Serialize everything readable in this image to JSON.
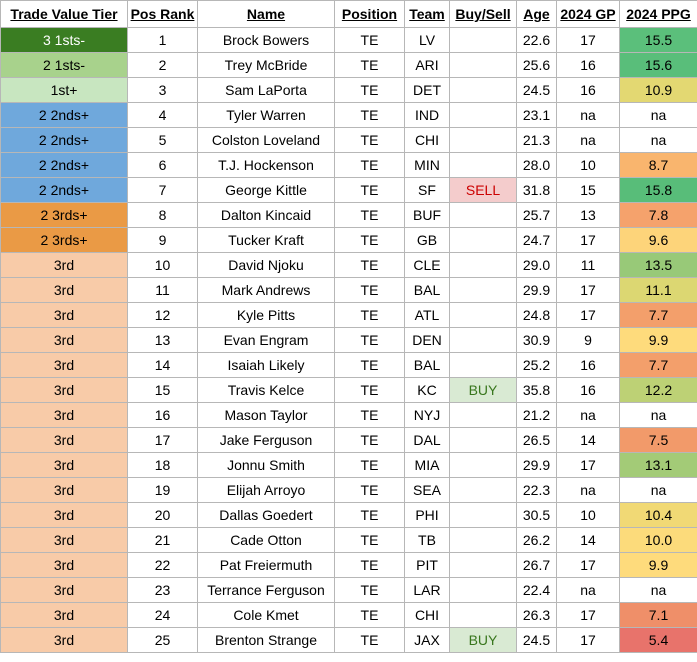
{
  "columns": [
    "Trade Value Tier",
    "Pos Rank",
    "Name",
    "Position",
    "Team",
    "Buy/Sell",
    "Age",
    "2024 GP",
    "2024 PPG"
  ],
  "colors": {
    "tier": {
      "3 1sts-": "#3a7d22",
      "2 1sts-": "#a8d28c",
      "1st+": "#c8e6c0",
      "2 2nds+": "#6fa8dc",
      "2 3rds+": "#ea9a45",
      "3rd": "#f8cba8"
    },
    "tier_text": {
      "3 1sts-": "#ffffff",
      "2 1sts-": "#000000",
      "1st+": "#000000",
      "2 2nds+": "#000000",
      "2 3rds+": "#000000",
      "3rd": "#000000"
    },
    "buy": "#d9ead3",
    "sell": "#f4cccc",
    "buy_text": "#38761d",
    "sell_text": "#cc0000"
  },
  "rows": [
    {
      "tier": "3 1sts-",
      "rank": "1",
      "name": "Brock Bowers",
      "pos": "TE",
      "team": "LV",
      "buysell": "",
      "age": "22.6",
      "gp": "17",
      "ppg": "15.5",
      "ppg_color": "#5bbf7b"
    },
    {
      "tier": "2 1sts-",
      "rank": "2",
      "name": "Trey McBride",
      "pos": "TE",
      "team": "ARI",
      "buysell": "",
      "age": "25.6",
      "gp": "16",
      "ppg": "15.6",
      "ppg_color": "#59be7a"
    },
    {
      "tier": "1st+",
      "rank": "3",
      "name": "Sam LaPorta",
      "pos": "TE",
      "team": "DET",
      "buysell": "",
      "age": "24.5",
      "gp": "16",
      "ppg": "10.9",
      "ppg_color": "#e3d872"
    },
    {
      "tier": "2 2nds+",
      "rank": "4",
      "name": "Tyler Warren",
      "pos": "TE",
      "team": "IND",
      "buysell": "",
      "age": "23.1",
      "gp": "na",
      "ppg": "na",
      "ppg_color": "#ffffff"
    },
    {
      "tier": "2 2nds+",
      "rank": "5",
      "name": "Colston Loveland",
      "pos": "TE",
      "team": "CHI",
      "buysell": "",
      "age": "21.3",
      "gp": "na",
      "ppg": "na",
      "ppg_color": "#ffffff"
    },
    {
      "tier": "2 2nds+",
      "rank": "6",
      "name": "T.J. Hockenson",
      "pos": "TE",
      "team": "MIN",
      "buysell": "",
      "age": "28.0",
      "gp": "10",
      "ppg": "8.7",
      "ppg_color": "#f9b56e"
    },
    {
      "tier": "2 2nds+",
      "rank": "7",
      "name": "George Kittle",
      "pos": "TE",
      "team": "SF",
      "buysell": "SELL",
      "age": "31.8",
      "gp": "15",
      "ppg": "15.8",
      "ppg_color": "#58bd79"
    },
    {
      "tier": "2 3rds+",
      "rank": "8",
      "name": "Dalton Kincaid",
      "pos": "TE",
      "team": "BUF",
      "buysell": "",
      "age": "25.7",
      "gp": "13",
      "ppg": "7.8",
      "ppg_color": "#f5a26c"
    },
    {
      "tier": "2 3rds+",
      "rank": "9",
      "name": "Tucker Kraft",
      "pos": "TE",
      "team": "GB",
      "buysell": "",
      "age": "24.7",
      "gp": "17",
      "ppg": "9.6",
      "ppg_color": "#fdd47a"
    },
    {
      "tier": "3rd",
      "rank": "10",
      "name": "David Njoku",
      "pos": "TE",
      "team": "CLE",
      "buysell": "",
      "age": "29.0",
      "gp": "11",
      "ppg": "13.5",
      "ppg_color": "#98c978"
    },
    {
      "tier": "3rd",
      "rank": "11",
      "name": "Mark Andrews",
      "pos": "TE",
      "team": "BAL",
      "buysell": "",
      "age": "29.9",
      "gp": "17",
      "ppg": "11.1",
      "ppg_color": "#dcd772"
    },
    {
      "tier": "3rd",
      "rank": "12",
      "name": "Kyle Pitts",
      "pos": "TE",
      "team": "ATL",
      "buysell": "",
      "age": "24.8",
      "gp": "17",
      "ppg": "7.7",
      "ppg_color": "#f39f6b"
    },
    {
      "tier": "3rd",
      "rank": "13",
      "name": "Evan Engram",
      "pos": "TE",
      "team": "DEN",
      "buysell": "",
      "age": "30.9",
      "gp": "9",
      "ppg": "9.9",
      "ppg_color": "#fedb7c"
    },
    {
      "tier": "3rd",
      "rank": "14",
      "name": "Isaiah Likely",
      "pos": "TE",
      "team": "BAL",
      "buysell": "",
      "age": "25.2",
      "gp": "16",
      "ppg": "7.7",
      "ppg_color": "#f39f6b"
    },
    {
      "tier": "3rd",
      "rank": "15",
      "name": "Travis Kelce",
      "pos": "TE",
      "team": "KC",
      "buysell": "BUY",
      "age": "35.8",
      "gp": "16",
      "ppg": "12.2",
      "ppg_color": "#bdd175"
    },
    {
      "tier": "3rd",
      "rank": "16",
      "name": "Mason Taylor",
      "pos": "TE",
      "team": "NYJ",
      "buysell": "",
      "age": "21.2",
      "gp": "na",
      "ppg": "na",
      "ppg_color": "#ffffff"
    },
    {
      "tier": "3rd",
      "rank": "17",
      "name": "Jake Ferguson",
      "pos": "TE",
      "team": "DAL",
      "buysell": "",
      "age": "26.5",
      "gp": "14",
      "ppg": "7.5",
      "ppg_color": "#f29a6a"
    },
    {
      "tier": "3rd",
      "rank": "18",
      "name": "Jonnu Smith",
      "pos": "TE",
      "team": "MIA",
      "buysell": "",
      "age": "29.9",
      "gp": "17",
      "ppg": "13.1",
      "ppg_color": "#a3cb77"
    },
    {
      "tier": "3rd",
      "rank": "19",
      "name": "Elijah Arroyo",
      "pos": "TE",
      "team": "SEA",
      "buysell": "",
      "age": "22.3",
      "gp": "na",
      "ppg": "na",
      "ppg_color": "#ffffff"
    },
    {
      "tier": "3rd",
      "rank": "20",
      "name": "Dallas Goedert",
      "pos": "TE",
      "team": "PHI",
      "buysell": "",
      "age": "30.5",
      "gp": "10",
      "ppg": "10.4",
      "ppg_color": "#f1d975"
    },
    {
      "tier": "3rd",
      "rank": "21",
      "name": "Cade Otton",
      "pos": "TE",
      "team": "TB",
      "buysell": "",
      "age": "26.2",
      "gp": "14",
      "ppg": "10.0",
      "ppg_color": "#fcdb7b"
    },
    {
      "tier": "3rd",
      "rank": "22",
      "name": "Pat Freiermuth",
      "pos": "TE",
      "team": "PIT",
      "buysell": "",
      "age": "26.7",
      "gp": "17",
      "ppg": "9.9",
      "ppg_color": "#fedb7c"
    },
    {
      "tier": "3rd",
      "rank": "23",
      "name": "Terrance Ferguson",
      "pos": "TE",
      "team": "LAR",
      "buysell": "",
      "age": "22.4",
      "gp": "na",
      "ppg": "na",
      "ppg_color": "#ffffff"
    },
    {
      "tier": "3rd",
      "rank": "24",
      "name": "Cole Kmet",
      "pos": "TE",
      "team": "CHI",
      "buysell": "",
      "age": "26.3",
      "gp": "17",
      "ppg": "7.1",
      "ppg_color": "#ef8f69"
    },
    {
      "tier": "3rd",
      "rank": "25",
      "name": "Brenton Strange",
      "pos": "TE",
      "team": "JAX",
      "buysell": "BUY",
      "age": "24.5",
      "gp": "17",
      "ppg": "5.4",
      "ppg_color": "#e8736b"
    }
  ]
}
